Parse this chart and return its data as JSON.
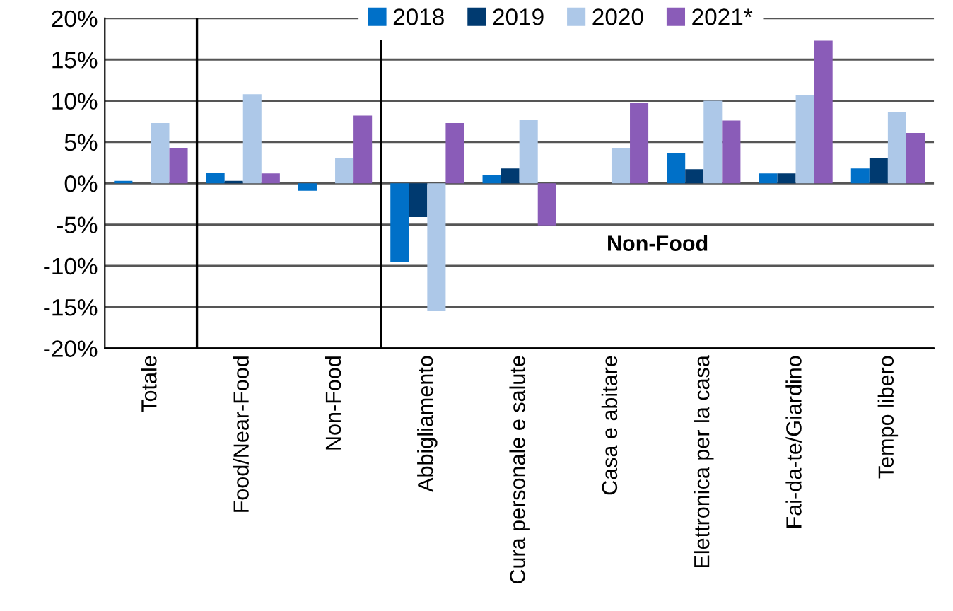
{
  "chart_data": {
    "type": "bar",
    "categories": [
      "Totale",
      "Food/Near-Food",
      "Non-Food",
      "Abbigliamento",
      "Cura personale e salute",
      "Casa e abitare",
      "Elettronica per la casa",
      "Fai-da-te/Giardino",
      "Tempo libero"
    ],
    "series": [
      {
        "name": "2018",
        "color": "#0070c8",
        "values": [
          0.3,
          1.3,
          -0.9,
          -9.5,
          1.0,
          0,
          3.7,
          1.2,
          1.8
        ]
      },
      {
        "name": "2019",
        "color": "#003a70",
        "values": [
          0,
          0.3,
          0,
          -4.1,
          1.8,
          0,
          1.7,
          1.2,
          3.1
        ]
      },
      {
        "name": "2020",
        "color": "#adc8e8",
        "values": [
          7.3,
          10.8,
          3.1,
          -15.5,
          7.7,
          4.3,
          10.0,
          10.7,
          8.6
        ]
      },
      {
        "name": "2021*",
        "color": "#8a5cb8",
        "values": [
          4.3,
          1.2,
          8.2,
          7.3,
          -5.1,
          9.8,
          7.6,
          17.3,
          6.1
        ]
      }
    ],
    "ylim": [
      -20,
      20
    ],
    "yticks": [
      {
        "value": -20,
        "label": "-20%"
      },
      {
        "value": -15,
        "label": "-15%"
      },
      {
        "value": -10,
        "label": "-10%"
      },
      {
        "value": -5,
        "label": "-5%"
      },
      {
        "value": 0,
        "label": "0%"
      },
      {
        "value": 5,
        "label": "5%"
      },
      {
        "value": 10,
        "label": "10%"
      },
      {
        "value": 15,
        "label": "15%"
      },
      {
        "value": 20,
        "label": "20%"
      }
    ],
    "grid": "y",
    "legend": "top",
    "annotations": [
      "Non-Food"
    ]
  }
}
